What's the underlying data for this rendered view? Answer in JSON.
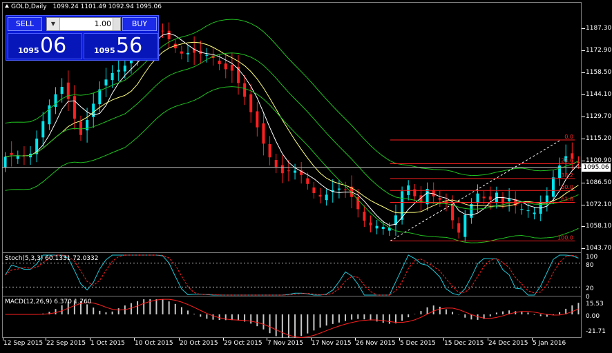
{
  "chart_header": {
    "symbol": "GOLD,Daily",
    "ohlc": "1099.24 1101.49 1092.94 1095.06"
  },
  "one_click": {
    "sell_label": "SELL",
    "buy_label": "BUY",
    "lot_value": "1.00",
    "sell_prefix": "1095",
    "sell_big": "06",
    "buy_prefix": "1095",
    "buy_big": "56"
  },
  "current_price": "1095.06",
  "price_axis": [
    "1187.30",
    "1172.90",
    "1158.50",
    "1144.10",
    "1129.70",
    "1115.20",
    "1100.90",
    "1086.50",
    "1072.10",
    "1058.10",
    "1043.70"
  ],
  "fib_levels": [
    "0.0",
    "23.6",
    "38.2",
    "50.0",
    "61.8",
    "100.0"
  ],
  "stoch": {
    "title": "Stoch(5,3,3) 60.1331 72.0332",
    "axis": [
      "100",
      "80",
      "20",
      "0"
    ]
  },
  "macd": {
    "title": "MACD(12,26,9) 6.370 1.760",
    "axis": [
      "15.53",
      "0.00",
      "-21.71"
    ]
  },
  "time_axis": [
    "12 Sep 2015",
    "22 Sep 2015",
    "1 Oct 2015",
    "10 Oct 2015",
    "20 Oct 2015",
    "29 Oct 2015",
    "7 Nov 2015",
    "17 Nov 2015",
    "26 Nov 2015",
    "5 Dec 2015",
    "15 Dec 2015",
    "24 Dec 2015",
    "5 Jan 2016"
  ],
  "colors": {
    "bull": "#00e5ee",
    "bear": "#ff2020",
    "bg": "#000000",
    "fib": "#ff2020",
    "ma_fast": "#ffffff",
    "ma_slow": "#ffff80",
    "bands": "#20c020"
  },
  "icons": {
    "header": "triangle-up-icon",
    "lot_dropdown": "chevron-down-icon"
  }
}
